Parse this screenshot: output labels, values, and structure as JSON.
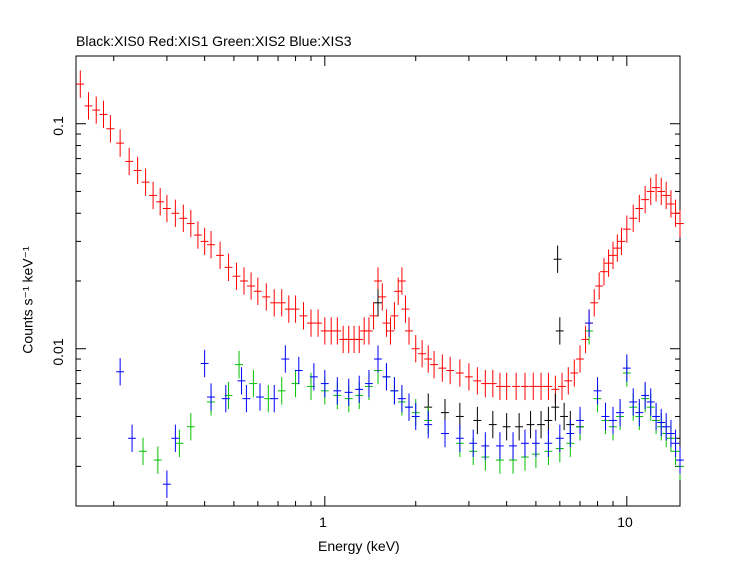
{
  "chart_data": {
    "type": "scatter",
    "title": "Black:XIS0 Red:XIS1 Green:XIS2 Blue:XIS3",
    "xlabel": "Energy (keV)",
    "ylabel": "Counts s⁻¹ keV⁻¹",
    "x_scale": "log",
    "y_scale": "log",
    "xlim": [
      0.15,
      15
    ],
    "ylim": [
      0.002,
      0.2
    ],
    "x_ticklabels": [
      {
        "value": 1,
        "label": "1"
      },
      {
        "value": 10,
        "label": "10"
      }
    ],
    "y_ticklabels": [
      {
        "value": 0.01,
        "label": "0.01"
      },
      {
        "value": 0.1,
        "label": "0.1"
      }
    ],
    "grid": false,
    "series": [
      {
        "name": "XIS1",
        "color": "#ff0000",
        "points": [
          [
            0.155,
            0.15
          ],
          [
            0.165,
            0.12
          ],
          [
            0.175,
            0.115
          ],
          [
            0.185,
            0.11
          ],
          [
            0.195,
            0.095
          ],
          [
            0.21,
            0.082
          ],
          [
            0.225,
            0.068
          ],
          [
            0.24,
            0.062
          ],
          [
            0.255,
            0.055
          ],
          [
            0.27,
            0.048
          ],
          [
            0.285,
            0.045
          ],
          [
            0.3,
            0.042
          ],
          [
            0.32,
            0.04
          ],
          [
            0.34,
            0.038
          ],
          [
            0.36,
            0.036
          ],
          [
            0.38,
            0.032
          ],
          [
            0.4,
            0.03
          ],
          [
            0.42,
            0.029
          ],
          [
            0.45,
            0.026
          ],
          [
            0.48,
            0.023
          ],
          [
            0.51,
            0.021
          ],
          [
            0.54,
            0.02
          ],
          [
            0.57,
            0.019
          ],
          [
            0.6,
            0.018
          ],
          [
            0.64,
            0.017
          ],
          [
            0.68,
            0.016
          ],
          [
            0.72,
            0.016
          ],
          [
            0.76,
            0.015
          ],
          [
            0.8,
            0.015
          ],
          [
            0.85,
            0.014
          ],
          [
            0.9,
            0.013
          ],
          [
            0.95,
            0.013
          ],
          [
            1.0,
            0.012
          ],
          [
            1.05,
            0.012
          ],
          [
            1.1,
            0.012
          ],
          [
            1.15,
            0.011
          ],
          [
            1.2,
            0.011
          ],
          [
            1.25,
            0.011
          ],
          [
            1.3,
            0.011
          ],
          [
            1.35,
            0.012
          ],
          [
            1.4,
            0.012
          ],
          [
            1.45,
            0.014
          ],
          [
            1.5,
            0.02
          ],
          [
            1.55,
            0.017
          ],
          [
            1.6,
            0.013
          ],
          [
            1.65,
            0.012
          ],
          [
            1.7,
            0.014
          ],
          [
            1.75,
            0.018
          ],
          [
            1.8,
            0.02
          ],
          [
            1.85,
            0.015
          ],
          [
            1.9,
            0.012
          ],
          [
            2.0,
            0.01
          ],
          [
            2.1,
            0.0095
          ],
          [
            2.2,
            0.009
          ],
          [
            2.3,
            0.0085
          ],
          [
            2.45,
            0.0082
          ],
          [
            2.6,
            0.008
          ],
          [
            2.8,
            0.0078
          ],
          [
            3.0,
            0.0075
          ],
          [
            3.2,
            0.0072
          ],
          [
            3.4,
            0.007
          ],
          [
            3.6,
            0.007
          ],
          [
            3.8,
            0.0068
          ],
          [
            4.0,
            0.0068
          ],
          [
            4.3,
            0.0068
          ],
          [
            4.6,
            0.0068
          ],
          [
            4.9,
            0.0068
          ],
          [
            5.2,
            0.0068
          ],
          [
            5.5,
            0.0068
          ],
          [
            5.8,
            0.0066
          ],
          [
            6.1,
            0.0068
          ],
          [
            6.4,
            0.0072
          ],
          [
            6.7,
            0.0078
          ],
          [
            7.0,
            0.009
          ],
          [
            7.3,
            0.011
          ],
          [
            7.5,
            0.013
          ],
          [
            7.8,
            0.016
          ],
          [
            8.1,
            0.019
          ],
          [
            8.4,
            0.022
          ],
          [
            8.7,
            0.024
          ],
          [
            9.0,
            0.026
          ],
          [
            9.3,
            0.028
          ],
          [
            9.6,
            0.03
          ],
          [
            10.0,
            0.034
          ],
          [
            10.5,
            0.038
          ],
          [
            11.0,
            0.042
          ],
          [
            11.5,
            0.046
          ],
          [
            12.0,
            0.05
          ],
          [
            12.5,
            0.052
          ],
          [
            13.0,
            0.05
          ],
          [
            13.5,
            0.048
          ],
          [
            14.0,
            0.044
          ],
          [
            14.5,
            0.04
          ],
          [
            15.0,
            0.036
          ]
        ]
      },
      {
        "name": "XIS0",
        "color": "#000000",
        "points": [
          [
            1.5,
            0.016
          ],
          [
            2.2,
            0.0055
          ],
          [
            2.5,
            0.0052
          ],
          [
            2.8,
            0.005
          ],
          [
            3.2,
            0.0048
          ],
          [
            3.6,
            0.0046
          ],
          [
            4.0,
            0.0045
          ],
          [
            4.4,
            0.0045
          ],
          [
            4.8,
            0.0046
          ],
          [
            5.2,
            0.0046
          ],
          [
            5.5,
            0.0048
          ],
          [
            5.8,
            0.0055
          ],
          [
            5.9,
            0.025
          ],
          [
            6.0,
            0.012
          ],
          [
            6.2,
            0.005
          ],
          [
            6.5,
            0.0046
          ],
          [
            7.0,
            0.0045
          ]
        ]
      },
      {
        "name": "XIS2",
        "color": "#00c000",
        "points": [
          [
            0.25,
            0.0035
          ],
          [
            0.28,
            0.0032
          ],
          [
            0.33,
            0.0038
          ],
          [
            0.36,
            0.0045
          ],
          [
            0.42,
            0.0058
          ],
          [
            0.48,
            0.0062
          ],
          [
            0.52,
            0.0085
          ],
          [
            0.58,
            0.007
          ],
          [
            0.65,
            0.006
          ],
          [
            0.72,
            0.0065
          ],
          [
            0.8,
            0.007
          ],
          [
            0.9,
            0.0068
          ],
          [
            1.0,
            0.0065
          ],
          [
            1.1,
            0.0062
          ],
          [
            1.2,
            0.006
          ],
          [
            1.3,
            0.0062
          ],
          [
            1.4,
            0.0068
          ],
          [
            1.5,
            0.008
          ],
          [
            1.6,
            0.0075
          ],
          [
            1.7,
            0.0065
          ],
          [
            1.8,
            0.0058
          ],
          [
            1.9,
            0.0055
          ],
          [
            2.0,
            0.0052
          ],
          [
            2.2,
            0.0048
          ],
          [
            2.5,
            0.0042
          ],
          [
            2.8,
            0.0038
          ],
          [
            3.1,
            0.0035
          ],
          [
            3.4,
            0.0033
          ],
          [
            3.8,
            0.0032
          ],
          [
            4.2,
            0.0032
          ],
          [
            4.6,
            0.0033
          ],
          [
            5.0,
            0.0034
          ],
          [
            5.5,
            0.0035
          ],
          [
            6.0,
            0.0036
          ],
          [
            6.5,
            0.0038
          ],
          [
            7.0,
            0.0045
          ],
          [
            7.5,
            0.012
          ],
          [
            8.0,
            0.006
          ],
          [
            8.5,
            0.0048
          ],
          [
            9.0,
            0.0045
          ],
          [
            9.5,
            0.005
          ],
          [
            10.0,
            0.0078
          ],
          [
            10.5,
            0.0055
          ],
          [
            11.0,
            0.005
          ],
          [
            11.5,
            0.006
          ],
          [
            12.0,
            0.0055
          ],
          [
            12.5,
            0.0048
          ],
          [
            13.0,
            0.0045
          ],
          [
            13.5,
            0.0042
          ],
          [
            14.0,
            0.004
          ],
          [
            14.5,
            0.0035
          ],
          [
            15.0,
            0.003
          ]
        ]
      },
      {
        "name": "XIS3",
        "color": "#0000ff",
        "points": [
          [
            0.21,
            0.0079
          ],
          [
            0.23,
            0.004
          ],
          [
            0.3,
            0.0025
          ],
          [
            0.32,
            0.004
          ],
          [
            0.4,
            0.0086
          ],
          [
            0.42,
            0.0061
          ],
          [
            0.47,
            0.006
          ],
          [
            0.53,
            0.0072
          ],
          [
            0.55,
            0.006
          ],
          [
            0.61,
            0.0061
          ],
          [
            0.68,
            0.006
          ],
          [
            0.74,
            0.009
          ],
          [
            0.82,
            0.008
          ],
          [
            0.92,
            0.0075
          ],
          [
            1.0,
            0.007
          ],
          [
            1.1,
            0.0065
          ],
          [
            1.2,
            0.0064
          ],
          [
            1.3,
            0.0066
          ],
          [
            1.4,
            0.007
          ],
          [
            1.5,
            0.009
          ],
          [
            1.6,
            0.0075
          ],
          [
            1.7,
            0.0065
          ],
          [
            1.8,
            0.006
          ],
          [
            1.9,
            0.0055
          ],
          [
            2.0,
            0.005
          ],
          [
            2.2,
            0.0046
          ],
          [
            2.5,
            0.0042
          ],
          [
            2.8,
            0.004
          ],
          [
            3.1,
            0.0038
          ],
          [
            3.4,
            0.0037
          ],
          [
            3.8,
            0.0037
          ],
          [
            4.2,
            0.0037
          ],
          [
            4.6,
            0.0038
          ],
          [
            5.0,
            0.0038
          ],
          [
            5.5,
            0.0038
          ],
          [
            6.0,
            0.004
          ],
          [
            6.5,
            0.0042
          ],
          [
            7.0,
            0.0048
          ],
          [
            7.5,
            0.013
          ],
          [
            8.0,
            0.0065
          ],
          [
            8.5,
            0.005
          ],
          [
            9.0,
            0.0048
          ],
          [
            9.5,
            0.0052
          ],
          [
            10.0,
            0.0082
          ],
          [
            10.5,
            0.0058
          ],
          [
            11.0,
            0.0052
          ],
          [
            11.5,
            0.0062
          ],
          [
            12.0,
            0.0058
          ],
          [
            12.5,
            0.005
          ],
          [
            13.0,
            0.0047
          ],
          [
            13.5,
            0.0045
          ],
          [
            14.0,
            0.0042
          ],
          [
            14.5,
            0.0038
          ],
          [
            15.0,
            0.0032
          ]
        ]
      }
    ]
  }
}
